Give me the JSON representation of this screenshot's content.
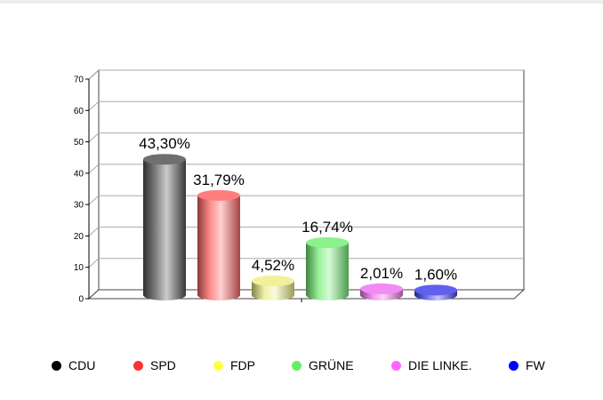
{
  "chart_data": {
    "type": "bar",
    "categories": [
      "CDU",
      "SPD",
      "FDP",
      "GRÜNE",
      "DIE LINKE.",
      "FW"
    ],
    "values": [
      43.3,
      31.79,
      4.52,
      16.74,
      2.01,
      1.6
    ],
    "data_labels": [
      "43,30%",
      "31,79%",
      "4,52%",
      "16,74%",
      "2,01%",
      "1,60%"
    ],
    "colors": [
      "#555555",
      "#ff6666",
      "#eeee88",
      "#77ee77",
      "#ee77ee",
      "#4444ee"
    ],
    "ylim": [
      0,
      70
    ],
    "yticks": [
      "0",
      "10",
      "20",
      "30",
      "40",
      "50",
      "60",
      "70"
    ],
    "grid": true,
    "legend_position": "bottom",
    "title": "",
    "xlabel": "",
    "ylabel": ""
  },
  "legend": {
    "items": [
      {
        "label": "CDU",
        "color": "#000000"
      },
      {
        "label": "SPD",
        "color": "#ff3333"
      },
      {
        "label": "FDP",
        "color": "#ffff44"
      },
      {
        "label": "GRÜNE",
        "color": "#66ee66"
      },
      {
        "label": "DIE LINKE.",
        "color": "#ff66ff"
      },
      {
        "label": "FW",
        "color": "#0000ff"
      }
    ]
  }
}
